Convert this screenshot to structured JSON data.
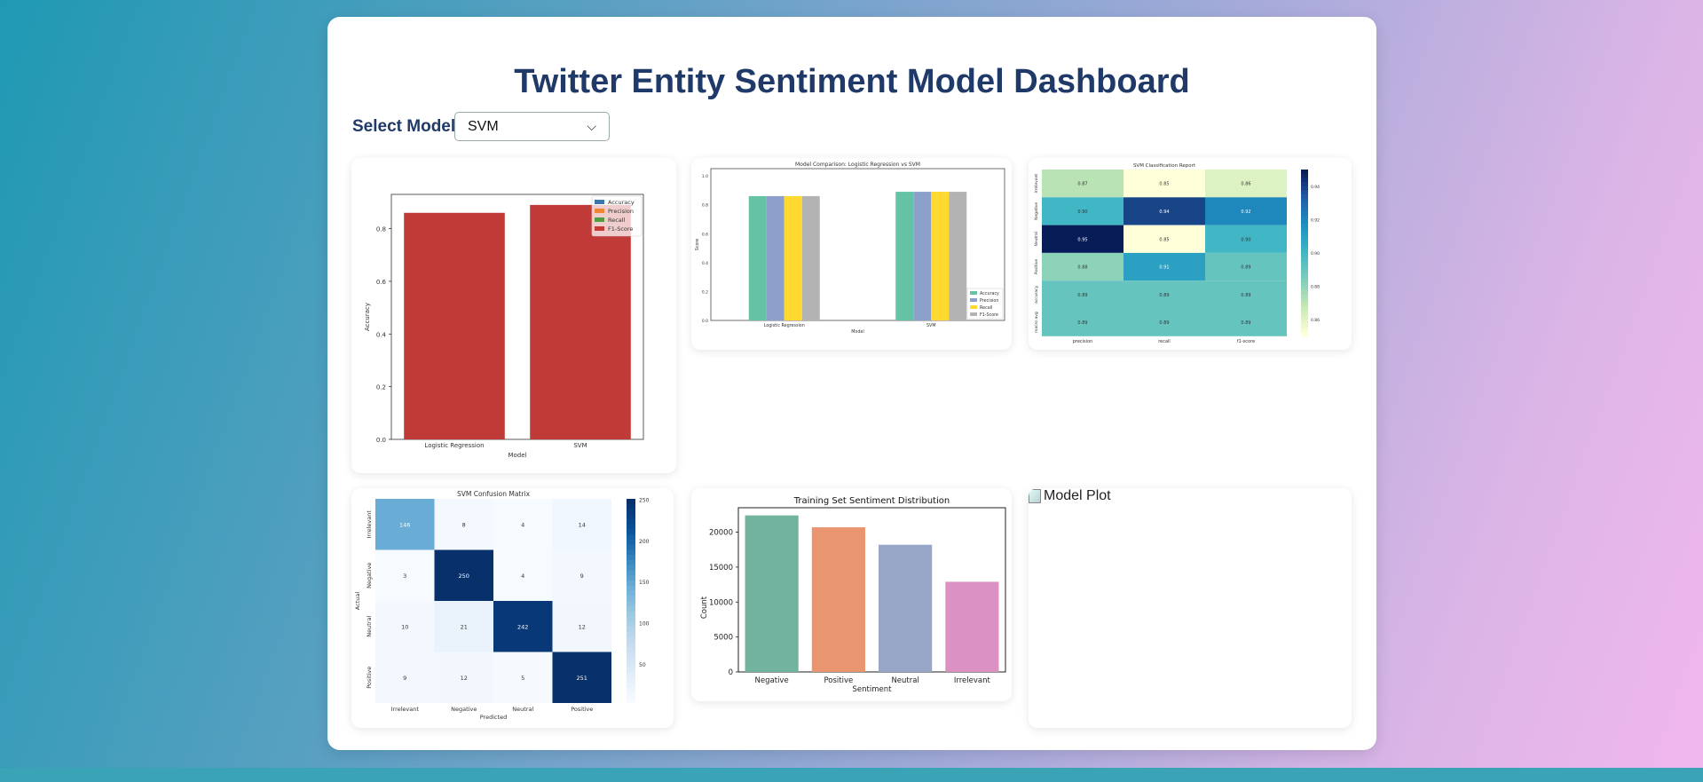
{
  "page": {
    "title": "Twitter Entity Sentiment Model Dashboard"
  },
  "controls": {
    "select_label": "Select Model:",
    "model_select": {
      "selected": "SVM",
      "options": [
        "SVM"
      ]
    }
  },
  "colors": {
    "heading": "#1f3a68",
    "accent": "#1f99b3"
  },
  "cards": {
    "model_plot_alt": "Model Plot"
  },
  "chart_data": [
    {
      "id": "accuracy_bar",
      "type": "bar",
      "title": "",
      "xlabel": "Model",
      "ylabel": "Accuracy",
      "categories": [
        "Logistic Regression",
        "SVM"
      ],
      "values": [
        0.86,
        0.89
      ],
      "ylim": [
        0,
        0.93
      ],
      "yticks": [
        "0.0",
        "0.2",
        "0.4",
        "0.6",
        "0.8"
      ],
      "legend": [
        "Accuracy",
        "Precision",
        "Recall",
        "F1-Score"
      ],
      "legend_colors": [
        "#3b75af",
        "#ef8636",
        "#519e3e",
        "#c53a32"
      ],
      "bar_color": "#c03a37",
      "legend_position": "top-right"
    },
    {
      "id": "model_comparison",
      "type": "bar",
      "title": "Model Comparison: Logistic Regression vs SVM",
      "xlabel": "Model",
      "ylabel": "Score",
      "categories": [
        "Logistic Regression",
        "SVM"
      ],
      "series": [
        {
          "name": "Accuracy",
          "values": [
            0.86,
            0.89
          ],
          "color": "#66c2a5"
        },
        {
          "name": "Precision",
          "values": [
            0.86,
            0.89
          ],
          "color": "#8da0cb"
        },
        {
          "name": "Recall",
          "values": [
            0.86,
            0.89
          ],
          "color": "#ffd92f"
        },
        {
          "name": "F1-Score",
          "values": [
            0.86,
            0.89
          ],
          "color": "#b3b3b3"
        }
      ],
      "ylim": [
        0,
        1.05
      ],
      "yticks": [
        "0.0",
        "0.2",
        "0.4",
        "0.6",
        "0.8",
        "1.0"
      ],
      "legend_position": "bottom-right"
    },
    {
      "id": "classification_report",
      "type": "heatmap",
      "title": "SVM Classification Report",
      "rows": [
        "Irrelevant",
        "Negative",
        "Neutral",
        "Positive",
        "accuracy",
        "macro avg"
      ],
      "cols": [
        "precision",
        "recall",
        "f1-score"
      ],
      "values": [
        [
          0.87,
          0.85,
          0.86
        ],
        [
          0.9,
          0.94,
          0.92
        ],
        [
          0.95,
          0.85,
          0.9
        ],
        [
          0.88,
          0.91,
          0.89
        ],
        [
          0.89,
          0.89,
          0.89
        ],
        [
          0.89,
          0.89,
          0.89
        ]
      ],
      "labels": [
        [
          "0.87",
          "0.85",
          "0.86"
        ],
        [
          "0.90",
          "0.94",
          "0.92"
        ],
        [
          "0.95",
          "0.85",
          "0.90"
        ],
        [
          "0.88",
          "0.91",
          "0.89"
        ],
        [
          "0.89",
          "0.89",
          "0.89"
        ],
        [
          "0.89",
          "0.89",
          "0.89"
        ]
      ],
      "colorbar_ticks": [
        "0.94",
        "0.92",
        "0.90",
        "0.88",
        "0.86"
      ],
      "colorbar_values": [
        0.94,
        0.92,
        0.9,
        0.88,
        0.86
      ],
      "vmin": 0.85,
      "vmax": 0.95,
      "colormap": "YlGnBu"
    },
    {
      "id": "confusion_matrix",
      "type": "heatmap",
      "title": "SVM Confusion Matrix",
      "xlabel": "Predicted",
      "ylabel": "Actual",
      "rows": [
        "Irrelevant",
        "Negative",
        "Neutral",
        "Positive"
      ],
      "cols": [
        "Irrelevant",
        "Negative",
        "Neutral",
        "Positive"
      ],
      "values": [
        [
          146,
          8,
          4,
          14
        ],
        [
          3,
          250,
          4,
          9
        ],
        [
          10,
          21,
          242,
          12
        ],
        [
          9,
          12,
          5,
          251
        ]
      ],
      "labels": [
        [
          "146",
          "8",
          "4",
          "14"
        ],
        [
          "3",
          "250",
          "4",
          "9"
        ],
        [
          "10",
          "21",
          "242",
          "12"
        ],
        [
          "9",
          "12",
          "5",
          "251"
        ]
      ],
      "colorbar_ticks": [
        "250",
        "200",
        "150",
        "100",
        "50"
      ],
      "colorbar_values": [
        250,
        200,
        150,
        100,
        50
      ],
      "vmin": 3,
      "vmax": 251,
      "colormap": "Blues"
    },
    {
      "id": "sentiment_distribution",
      "type": "bar",
      "title": "Training Set Sentiment Distribution",
      "xlabel": "Sentiment",
      "ylabel": "Count",
      "categories": [
        "Negative",
        "Positive",
        "Neutral",
        "Irrelevant"
      ],
      "values": [
        22400,
        20700,
        18200,
        12900
      ],
      "colors": [
        "#72b3a0",
        "#e9956f",
        "#97a5c6",
        "#db92c2"
      ],
      "ylim": [
        0,
        23500
      ],
      "yticks": [
        "0",
        "5000",
        "10000",
        "15000",
        "20000"
      ],
      "ytick_values": [
        0,
        5000,
        10000,
        15000,
        20000
      ]
    }
  ]
}
